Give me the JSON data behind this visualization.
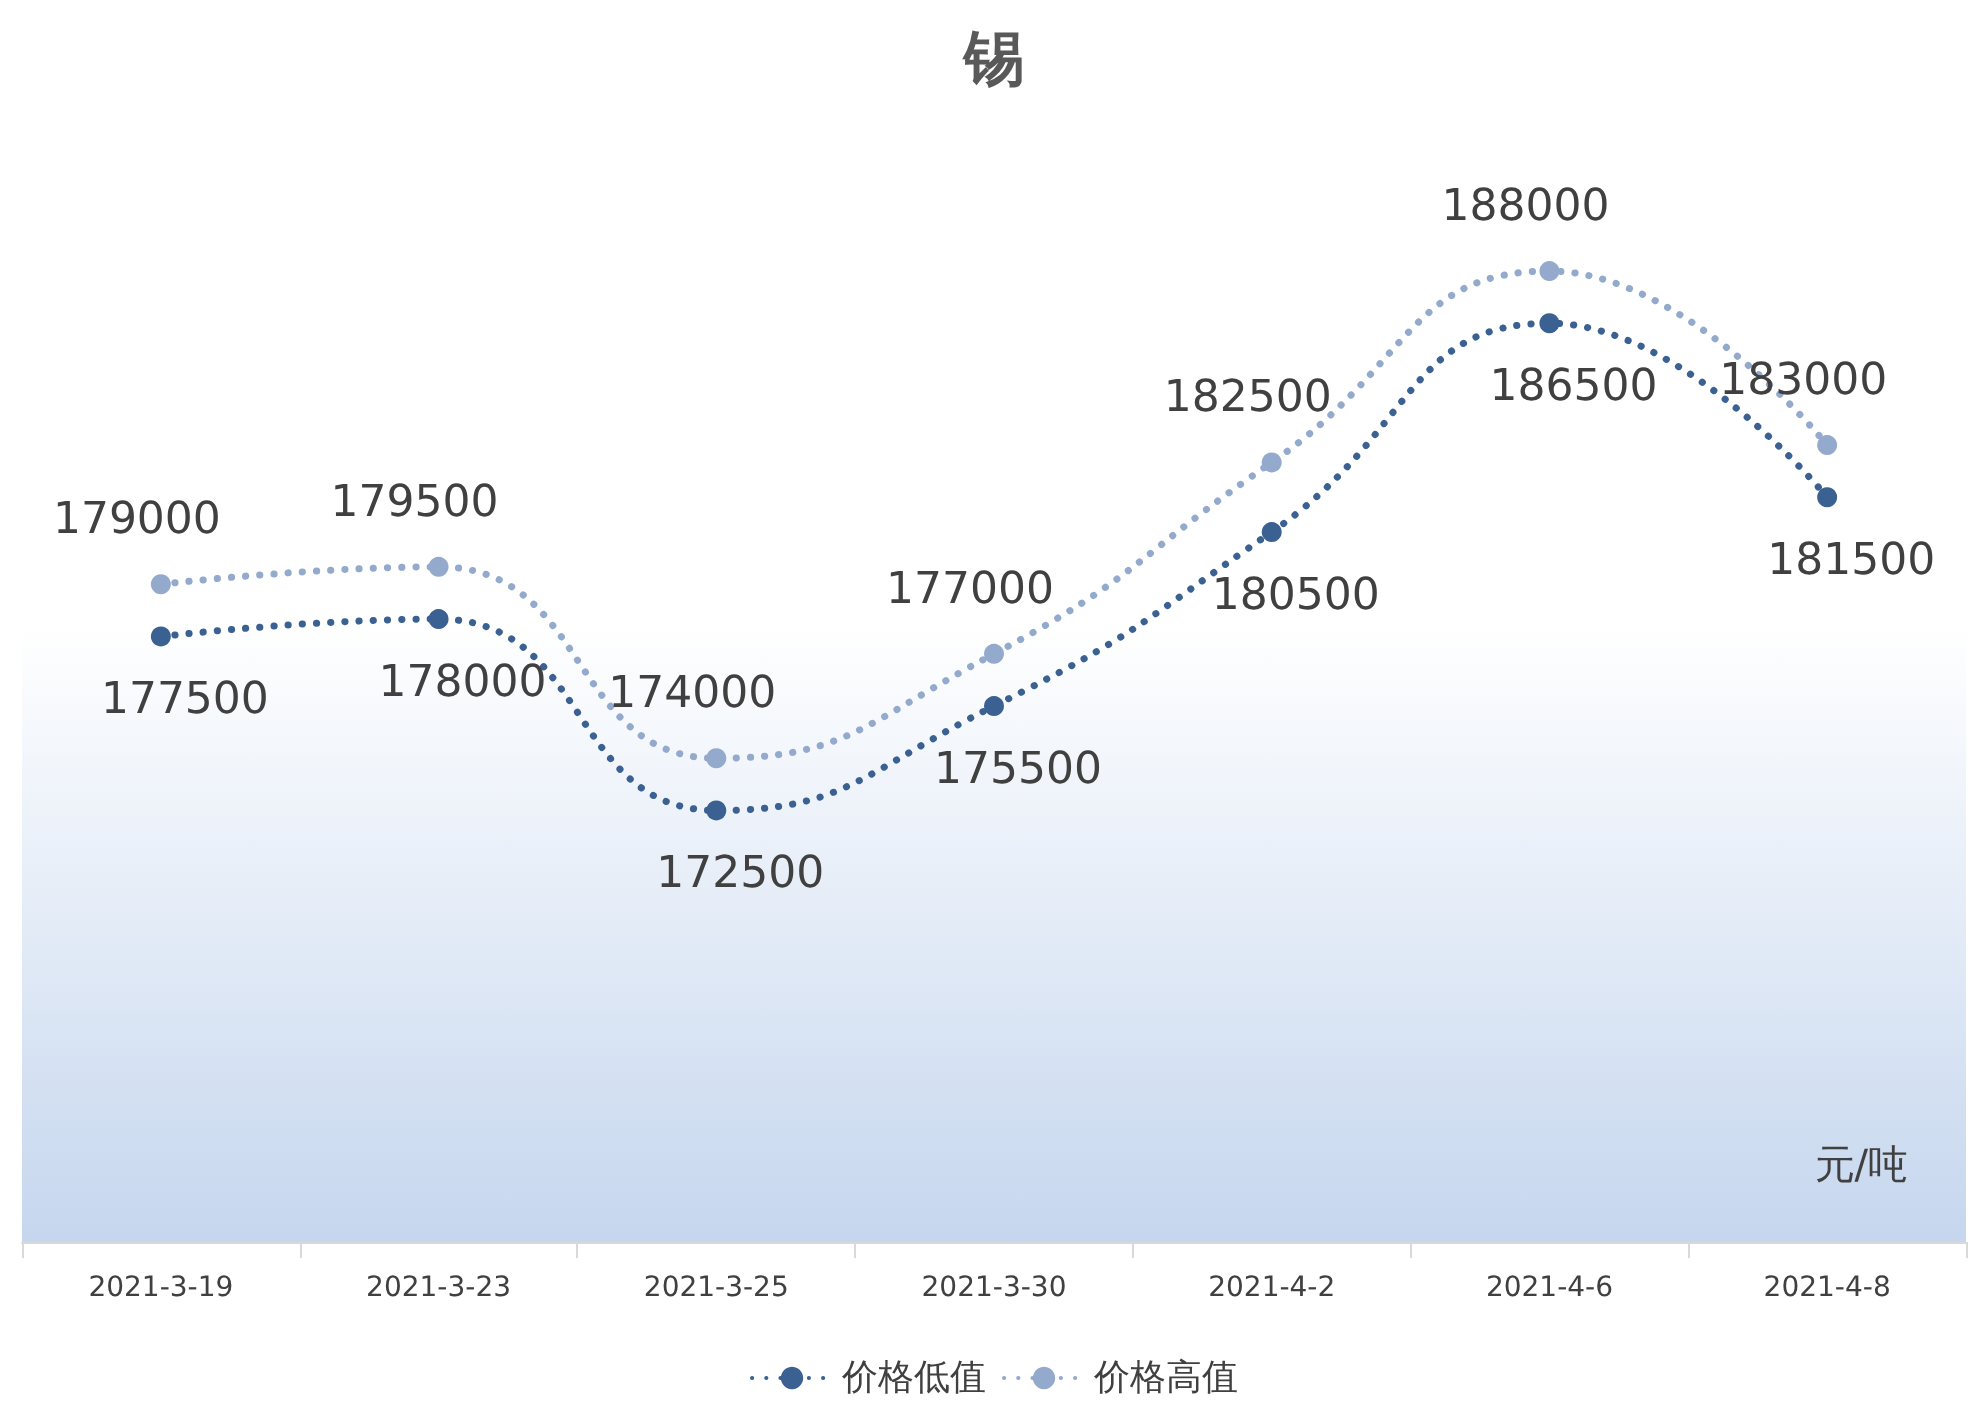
{
  "chart_data": {
    "type": "line",
    "title": "锡",
    "categories": [
      "2021-3-19",
      "2021-3-23",
      "2021-3-25",
      "2021-3-30",
      "2021-4-2",
      "2021-4-6",
      "2021-4-8"
    ],
    "series": [
      {
        "name": "价格低值",
        "color": "#3a6191",
        "values": [
          177500,
          178000,
          172500,
          175500,
          180500,
          186500,
          181500
        ]
      },
      {
        "name": "价格高值",
        "color": "#94aacd",
        "values": [
          179000,
          179500,
          174000,
          177000,
          182500,
          188000,
          183000
        ]
      }
    ],
    "data_labels": true,
    "marker": "circle",
    "line_style": "dotted",
    "grid": false,
    "legend": "bottom",
    "annotations": [
      "元/吨"
    ]
  }
}
